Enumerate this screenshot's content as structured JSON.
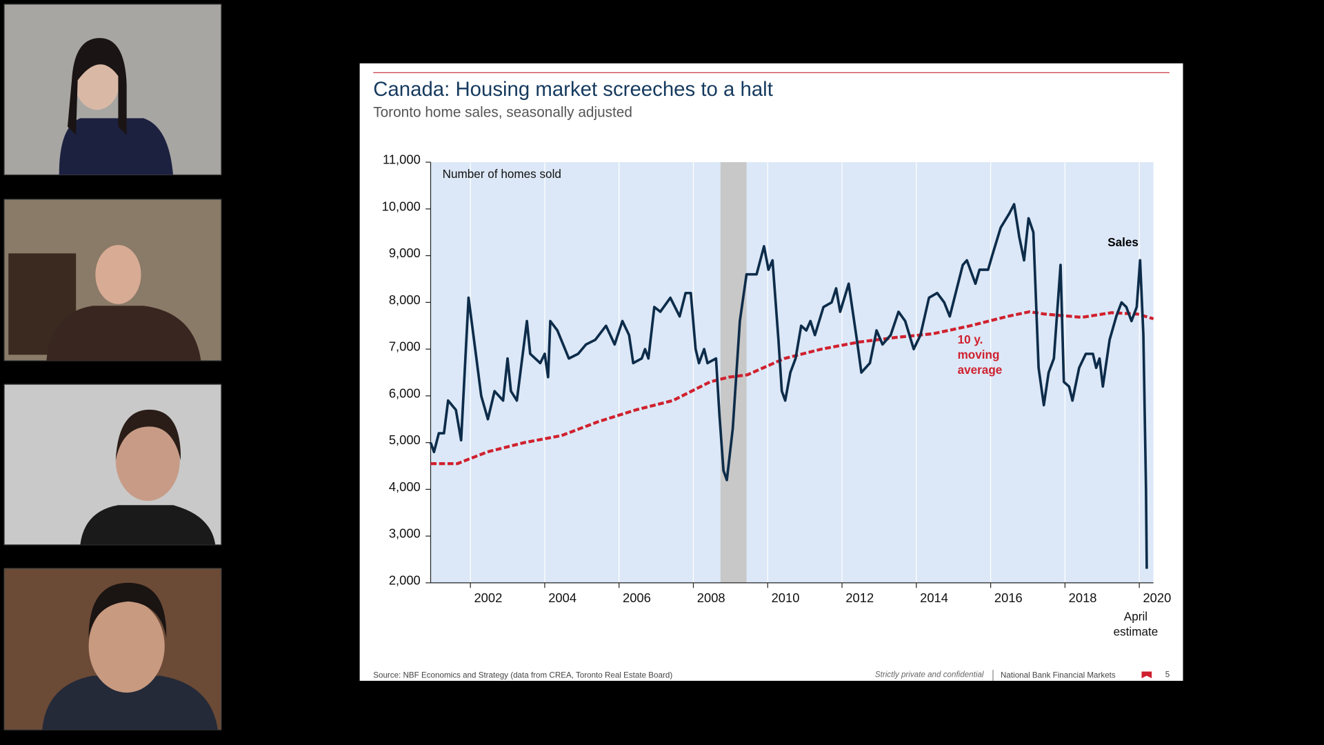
{
  "slide": {
    "title": "Canada: Housing market screeches to a halt",
    "subtitle": "Toronto home sales, seasonally adjusted",
    "source": "Source: NBF Economics and Strategy (data from CREA, Toronto Real Estate Board)",
    "confidential": "Strictly private and confidential",
    "company": "National Bank Financial Markets",
    "page_number": "5"
  },
  "chart_data": {
    "type": "line",
    "y_label": "Number of homes sold",
    "annotations": {
      "sales": "Sales",
      "moving_average": [
        "10 y.",
        "moving",
        "average"
      ],
      "estimate": [
        "April",
        "estimate"
      ]
    },
    "xlim": [
      2000.48,
      2019.93
    ],
    "xticks": [
      {
        "value": 2001.55,
        "label": "2002"
      },
      {
        "value": 2003.55,
        "label": "2004"
      },
      {
        "value": 2005.55,
        "label": "2006"
      },
      {
        "value": 2007.55,
        "label": "2008"
      },
      {
        "value": 2009.55,
        "label": "2010"
      },
      {
        "value": 2011.55,
        "label": "2012"
      },
      {
        "value": 2013.55,
        "label": "2014"
      },
      {
        "value": 2015.55,
        "label": "2016"
      },
      {
        "value": 2017.55,
        "label": "2018"
      },
      {
        "value": 2019.55,
        "label": "2020"
      }
    ],
    "ylim": [
      2000,
      11000
    ],
    "yticks": [
      {
        "value": 2000,
        "label": "2,000"
      },
      {
        "value": 3000,
        "label": "3,000"
      },
      {
        "value": 4000,
        "label": "4,000"
      },
      {
        "value": 5000,
        "label": "5,000"
      },
      {
        "value": 6000,
        "label": "6,000"
      },
      {
        "value": 7000,
        "label": "7,000"
      },
      {
        "value": 8000,
        "label": "8,000"
      },
      {
        "value": 9000,
        "label": "9,000"
      },
      {
        "value": 10000,
        "label": "10,000"
      },
      {
        "value": 11000,
        "label": "11,000"
      }
    ],
    "recession_band": [
      2008.28,
      2008.98
    ],
    "grid": true,
    "series": [
      {
        "name": "Sales",
        "color": "#0d2c4a",
        "x": [
          2000.48,
          2000.57,
          2000.7,
          2000.84,
          2000.95,
          2001.16,
          2001.3,
          2001.5,
          2001.68,
          2001.84,
          2002.02,
          2002.2,
          2002.43,
          2002.55,
          2002.64,
          2002.8,
          2003.07,
          2003.16,
          2003.43,
          2003.55,
          2003.64,
          2003.7,
          2003.89,
          2004.2,
          2004.45,
          2004.66,
          2004.91,
          2005.2,
          2005.43,
          2005.64,
          2005.82,
          2005.93,
          2006.16,
          2006.25,
          2006.34,
          2006.5,
          2006.66,
          2006.93,
          2007.18,
          2007.34,
          2007.48,
          2007.61,
          2007.7,
          2007.84,
          2007.93,
          2008.16,
          2008.25,
          2008.36,
          2008.45,
          2008.61,
          2008.8,
          2008.98,
          2009.25,
          2009.45,
          2009.57,
          2009.68,
          2009.84,
          2009.93,
          2010.02,
          2010.16,
          2010.3,
          2010.45,
          2010.59,
          2010.7,
          2010.82,
          2011.05,
          2011.27,
          2011.39,
          2011.5,
          2011.73,
          2011.95,
          2012.07,
          2012.3,
          2012.48,
          2012.64,
          2012.86,
          2013.07,
          2013.25,
          2013.48,
          2013.66,
          2013.89,
          2014.11,
          2014.3,
          2014.45,
          2014.8,
          2014.91,
          2015.14,
          2015.25,
          2015.48,
          2015.59,
          2015.82,
          2016.05,
          2016.18,
          2016.32,
          2016.45,
          2016.57,
          2016.7,
          2016.84,
          2016.98,
          2017.11,
          2017.25,
          2017.43,
          2017.52,
          2017.66,
          2017.75,
          2017.93,
          2018.11,
          2018.3,
          2018.39,
          2018.48,
          2018.57,
          2018.75,
          2018.93,
          2019.07,
          2019.2,
          2019.34,
          2019.48,
          2019.57,
          2019.66,
          2019.73,
          2019.75
        ],
        "values": [
          5000,
          4800,
          5200,
          5200,
          5900,
          5700,
          5050,
          8100,
          7000,
          6000,
          5500,
          6100,
          5900,
          6800,
          6100,
          5900,
          7600,
          6900,
          6700,
          6900,
          6400,
          7600,
          7400,
          6800,
          6900,
          7100,
          7200,
          7500,
          7100,
          7600,
          7300,
          6700,
          6800,
          7000,
          6800,
          7900,
          7800,
          8100,
          7700,
          8200,
          8200,
          7000,
          6700,
          7000,
          6700,
          6800,
          5600,
          4400,
          4200,
          5300,
          7600,
          8600,
          8600,
          9200,
          8700,
          8900,
          7200,
          6100,
          5900,
          6500,
          6800,
          7500,
          7400,
          7600,
          7300,
          7900,
          8000,
          8300,
          7800,
          8400,
          7200,
          6500,
          6700,
          7400,
          7100,
          7300,
          7800,
          7600,
          7000,
          7300,
          8100,
          8200,
          8000,
          7700,
          8800,
          8900,
          8400,
          8700,
          8700,
          9000,
          9600,
          9900,
          10100,
          9400,
          8900,
          9800,
          9500,
          6600,
          5800,
          6500,
          6800,
          8800,
          6300,
          6200,
          5900,
          6600,
          6900,
          6900,
          6600,
          6800,
          6200,
          7200,
          7700,
          8000,
          7900,
          7600,
          7900,
          8900,
          7300,
          4000,
          2300
        ]
      },
      {
        "name": "10 y. moving average",
        "color": "#d0202e",
        "x": [
          2000.48,
          2001.2,
          2002,
          2003,
          2004,
          2005,
          2006,
          2007,
          2008,
          2008.5,
          2009,
          2010,
          2011,
          2012,
          2013,
          2014,
          2015,
          2016,
          2016.6,
          2017,
          2018,
          2018.8,
          2019.5,
          2019.93
        ],
        "values": [
          4550,
          4550,
          4800,
          5000,
          5150,
          5450,
          5700,
          5900,
          6300,
          6400,
          6450,
          6800,
          7000,
          7150,
          7250,
          7330,
          7500,
          7700,
          7800,
          7750,
          7680,
          7780,
          7750,
          7650
        ]
      }
    ]
  }
}
